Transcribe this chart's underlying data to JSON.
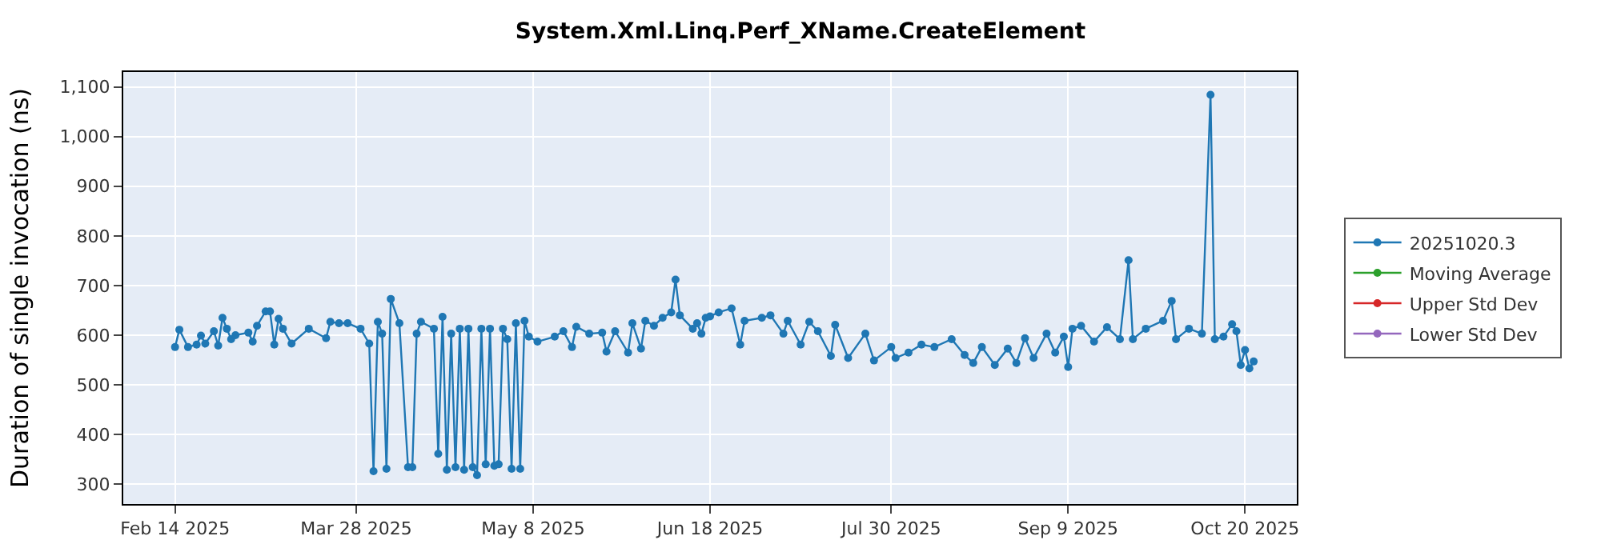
{
  "chart_data": {
    "type": "line",
    "title": "System.Xml.Linq.Perf_XName.CreateElement",
    "ylabel": "Duration of single invocation (ns)",
    "x": [
      "2025-02-14",
      "2025-02-15",
      "2025-02-17",
      "2025-02-19",
      "2025-02-20",
      "2025-02-21",
      "2025-02-23",
      "2025-02-24",
      "2025-02-25",
      "2025-02-26",
      "2025-02-27",
      "2025-02-28",
      "2025-03-03",
      "2025-03-04",
      "2025-03-05",
      "2025-03-07",
      "2025-03-08",
      "2025-03-09",
      "2025-03-10",
      "2025-03-11",
      "2025-03-13",
      "2025-03-17",
      "2025-03-21",
      "2025-03-22",
      "2025-03-24",
      "2025-03-26",
      "2025-03-29",
      "2025-03-31",
      "2025-04-01",
      "2025-04-02",
      "2025-04-03",
      "2025-04-04",
      "2025-04-05",
      "2025-04-07",
      "2025-04-09",
      "2025-04-10",
      "2025-04-11",
      "2025-04-12",
      "2025-04-15",
      "2025-04-16",
      "2025-04-17",
      "2025-04-18",
      "2025-04-19",
      "2025-04-20",
      "2025-04-21",
      "2025-04-22",
      "2025-04-23",
      "2025-04-24",
      "2025-04-25",
      "2025-04-26",
      "2025-04-27",
      "2025-04-28",
      "2025-04-29",
      "2025-04-30",
      "2025-05-01",
      "2025-05-02",
      "2025-05-03",
      "2025-05-04",
      "2025-05-05",
      "2025-05-06",
      "2025-05-07",
      "2025-05-09",
      "2025-05-13",
      "2025-05-15",
      "2025-05-17",
      "2025-05-18",
      "2025-05-21",
      "2025-05-24",
      "2025-05-25",
      "2025-05-27",
      "2025-05-30",
      "2025-05-31",
      "2025-06-02",
      "2025-06-03",
      "2025-06-05",
      "2025-06-07",
      "2025-06-09",
      "2025-06-10",
      "2025-06-11",
      "2025-06-14",
      "2025-06-15",
      "2025-06-16",
      "2025-06-17",
      "2025-06-18",
      "2025-06-20",
      "2025-06-23",
      "2025-06-25",
      "2025-06-26",
      "2025-06-30",
      "2025-07-02",
      "2025-07-05",
      "2025-07-06",
      "2025-07-09",
      "2025-07-11",
      "2025-07-13",
      "2025-07-16",
      "2025-07-17",
      "2025-07-20",
      "2025-07-24",
      "2025-07-26",
      "2025-07-30",
      "2025-07-31",
      "2025-08-03",
      "2025-08-06",
      "2025-08-09",
      "2025-08-13",
      "2025-08-16",
      "2025-08-18",
      "2025-08-20",
      "2025-08-23",
      "2025-08-26",
      "2025-08-28",
      "2025-08-30",
      "2025-09-01",
      "2025-09-04",
      "2025-09-06",
      "2025-09-08",
      "2025-09-09",
      "2025-09-10",
      "2025-09-12",
      "2025-09-15",
      "2025-09-18",
      "2025-09-21",
      "2025-09-23",
      "2025-09-24",
      "2025-09-27",
      "2025-10-01",
      "2025-10-03",
      "2025-10-04",
      "2025-10-07",
      "2025-10-10",
      "2025-10-12",
      "2025-10-13",
      "2025-10-15",
      "2025-10-17",
      "2025-10-18",
      "2025-10-19",
      "2025-10-20",
      "2025-10-21",
      "2025-10-22"
    ],
    "series": [
      {
        "name": "20251020.3",
        "color": "#1f77b4",
        "values": [
          576,
          611,
          576,
          581,
          599,
          583,
          608,
          579,
          635,
          613,
          592,
          600,
          605,
          587,
          619,
          648,
          648,
          581,
          633,
          613,
          583,
          613,
          594,
          627,
          624,
          624,
          613,
          583,
          326,
          627,
          603,
          331,
          673,
          624,
          334,
          334,
          603,
          627,
          613,
          361,
          637,
          329,
          603,
          334,
          613,
          329,
          613,
          334,
          318,
          613,
          340,
          613,
          337,
          340,
          613,
          592,
          331,
          624,
          331,
          629,
          597,
          587,
          597,
          608,
          576,
          617,
          603,
          605,
          567,
          608,
          565,
          624,
          573,
          629,
          619,
          635,
          646,
          712,
          640,
          613,
          624,
          603,
          635,
          638,
          646,
          654,
          581,
          629,
          635,
          640,
          603,
          629,
          581,
          627,
          608,
          558,
          621,
          554,
          603,
          549,
          576,
          554,
          565,
          581,
          576,
          592,
          560,
          544,
          576,
          540,
          573,
          544,
          594,
          554,
          603,
          565,
          597,
          536,
          613,
          619,
          587,
          616,
          592,
          751,
          592,
          613,
          629,
          669,
          592,
          613,
          603,
          1084,
          592,
          597,
          622,
          608,
          540,
          570,
          533,
          547
        ]
      },
      {
        "name": "Moving Average",
        "color": "#2ca02c",
        "values": [
          null,
          null,
          null,
          null,
          null,
          null,
          null,
          null,
          null,
          null,
          null,
          null,
          null,
          null,
          null,
          null,
          null,
          null,
          null,
          null,
          null,
          null,
          null,
          null,
          null,
          null,
          null,
          null,
          null,
          null,
          null,
          null,
          null,
          null,
          null,
          null,
          null,
          null,
          null,
          null,
          null,
          null,
          null,
          null,
          null,
          null,
          null,
          null,
          null,
          null,
          null,
          null,
          null,
          null,
          null,
          null,
          null,
          null,
          null,
          null,
          null,
          null,
          null,
          null,
          null,
          null,
          null,
          null,
          null,
          null,
          null,
          null,
          null,
          null,
          null,
          null,
          null,
          null,
          null,
          null,
          null,
          null,
          null,
          null,
          null,
          null,
          null,
          null,
          null,
          null,
          null,
          null,
          null,
          null,
          null,
          null,
          null,
          null,
          null,
          null,
          null,
          null,
          null,
          null,
          null,
          null,
          null,
          null,
          null,
          null,
          null,
          null,
          null,
          null,
          null,
          null,
          null,
          null,
          null,
          null,
          null,
          null,
          null,
          null,
          null,
          null,
          null,
          null,
          null,
          null,
          null,
          null,
          null,
          null,
          null,
          null,
          null,
          null,
          null,
          null
        ]
      },
      {
        "name": "Upper Std Dev",
        "color": "#d62728",
        "values": [
          null,
          null,
          null,
          null,
          null,
          null,
          null,
          null,
          null,
          null,
          null,
          null,
          null,
          null,
          null,
          null,
          null,
          null,
          null,
          null,
          null,
          null,
          null,
          null,
          null,
          null,
          null,
          null,
          null,
          null,
          null,
          null,
          null,
          null,
          null,
          null,
          null,
          null,
          null,
          null,
          null,
          null,
          null,
          null,
          null,
          null,
          null,
          null,
          null,
          null,
          null,
          null,
          null,
          null,
          null,
          null,
          null,
          null,
          null,
          null,
          null,
          null,
          null,
          null,
          null,
          null,
          null,
          null,
          null,
          null,
          null,
          null,
          null,
          null,
          null,
          null,
          null,
          null,
          null,
          null,
          null,
          null,
          null,
          null,
          null,
          null,
          null,
          null,
          null,
          null,
          null,
          null,
          null,
          null,
          null,
          null,
          null,
          null,
          null,
          null,
          null,
          null,
          null,
          null,
          null,
          null,
          null,
          null,
          null,
          null,
          null,
          null,
          null,
          null,
          null,
          null,
          null,
          null,
          null,
          null,
          null,
          null,
          null,
          null,
          null,
          null,
          null,
          null,
          null,
          null,
          null,
          null,
          null,
          null,
          null,
          null,
          null,
          null,
          null,
          null
        ]
      },
      {
        "name": "Lower Std Dev",
        "color": "#9467bd",
        "values": [
          null,
          null,
          null,
          null,
          null,
          null,
          null,
          null,
          null,
          null,
          null,
          null,
          null,
          null,
          null,
          null,
          null,
          null,
          null,
          null,
          null,
          null,
          null,
          null,
          null,
          null,
          null,
          null,
          null,
          null,
          null,
          null,
          null,
          null,
          null,
          null,
          null,
          null,
          null,
          null,
          null,
          null,
          null,
          null,
          null,
          null,
          null,
          null,
          null,
          null,
          null,
          null,
          null,
          null,
          null,
          null,
          null,
          null,
          null,
          null,
          null,
          null,
          null,
          null,
          null,
          null,
          null,
          null,
          null,
          null,
          null,
          null,
          null,
          null,
          null,
          null,
          null,
          null,
          null,
          null,
          null,
          null,
          null,
          null,
          null,
          null,
          null,
          null,
          null,
          null,
          null,
          null,
          null,
          null,
          null,
          null,
          null,
          null,
          null,
          null,
          null,
          null,
          null,
          null,
          null,
          null,
          null,
          null,
          null,
          null,
          null,
          null,
          null,
          null,
          null,
          null,
          null,
          null,
          null,
          null,
          null,
          null,
          null,
          null,
          null,
          null,
          null,
          null,
          null,
          null,
          null,
          null,
          null,
          null,
          null,
          null,
          null,
          null,
          null,
          null
        ]
      }
    ],
    "xlim": [
      "2025-02-02",
      "2025-11-01"
    ],
    "xticks": [
      {
        "value": "2025-02-14",
        "label": "Feb 14 2025"
      },
      {
        "value": "2025-03-28",
        "label": "Mar 28 2025"
      },
      {
        "value": "2025-05-08",
        "label": "May 8 2025"
      },
      {
        "value": "2025-06-18",
        "label": "Jun 18 2025"
      },
      {
        "value": "2025-07-30",
        "label": "Jul 30 2025"
      },
      {
        "value": "2025-09-09",
        "label": "Sep 9 2025"
      },
      {
        "value": "2025-10-20",
        "label": "Oct 20 2025"
      }
    ],
    "ylim": [
      260,
      1130
    ],
    "yticks": [
      300,
      400,
      500,
      600,
      700,
      800,
      900,
      {
        "value": 1000,
        "label": "1,000"
      },
      {
        "value": 1100,
        "label": "1,100"
      }
    ],
    "grid": true,
    "legend": "right",
    "marker": "circle",
    "line_style": "solid"
  }
}
